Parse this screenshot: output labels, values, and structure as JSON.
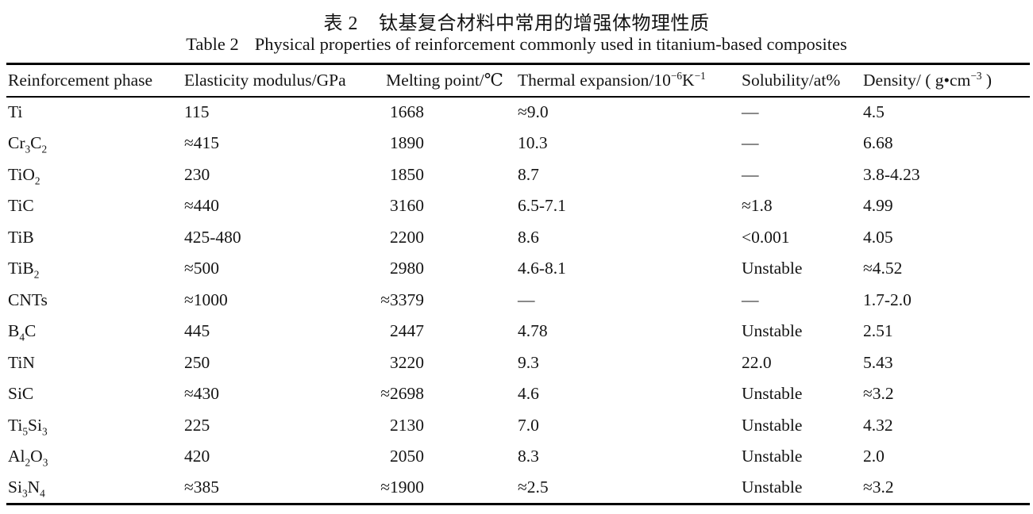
{
  "page": {
    "background_color": "#ffffff",
    "text_color": "#141414"
  },
  "captions": {
    "zh_label": "表 2",
    "zh_text": "钛基复合材料中常用的增强体物理性质",
    "en_label": "Table 2",
    "en_text": "Physical properties of reinforcement commonly used in titanium-based composites"
  },
  "table": {
    "columns": [
      {
        "key": "reinforcement-phase",
        "label": "Reinforcement phase",
        "align": "left"
      },
      {
        "key": "elasticity-modulus",
        "label": "Elasticity modulus/GPa",
        "align": "left"
      },
      {
        "key": "melting-point",
        "label": "Melting point/℃",
        "align": "right"
      },
      {
        "key": "thermal-expansion",
        "label": "Thermal expansion/10^{−6}K^{−1}",
        "align": "left"
      },
      {
        "key": "solubility",
        "label": "Solubility/at%",
        "align": "left"
      },
      {
        "key": "density",
        "label": "Density/ ( g•cm^{−3} )",
        "align": "left"
      }
    ],
    "rows": [
      [
        "Ti",
        "115",
        "1668",
        "≈9.0",
        "—",
        "4.5"
      ],
      [
        "Cr_{3}C_{2}",
        "≈415",
        "1890",
        "10.3",
        "—",
        "6.68"
      ],
      [
        "TiO_{2}",
        "230",
        "1850",
        "8.7",
        "—",
        "3.8-4.23"
      ],
      [
        "TiC",
        "≈440",
        "3160",
        "6.5-7.1",
        "≈1.8",
        "4.99"
      ],
      [
        "TiB",
        "425-480",
        "2200",
        "8.6",
        "<0.001",
        "4.05"
      ],
      [
        "TiB_{2}",
        "≈500",
        "2980",
        "4.6-8.1",
        "Unstable",
        "≈4.52"
      ],
      [
        "CNTs",
        "≈1000",
        "≈3379",
        "—",
        "—",
        "1.7-2.0"
      ],
      [
        "B_{4}C",
        "445",
        "2447",
        "4.78",
        "Unstable",
        "2.51"
      ],
      [
        "TiN",
        "250",
        "3220",
        "9.3",
        "22.0",
        "5.43"
      ],
      [
        "SiC",
        "≈430",
        "≈2698",
        "4.6",
        "Unstable",
        "≈3.2"
      ],
      [
        "Ti_{5}Si_{3}",
        "225",
        "2130",
        "7.0",
        "Unstable",
        "4.32"
      ],
      [
        "Al_{2}O_{3}",
        "420",
        "2050",
        "8.3",
        "Unstable",
        "2.0"
      ],
      [
        "Si_{3}N_{4}",
        "≈385",
        "≈1900",
        "≈2.5",
        "Unstable",
        "≈3.2"
      ]
    ]
  }
}
